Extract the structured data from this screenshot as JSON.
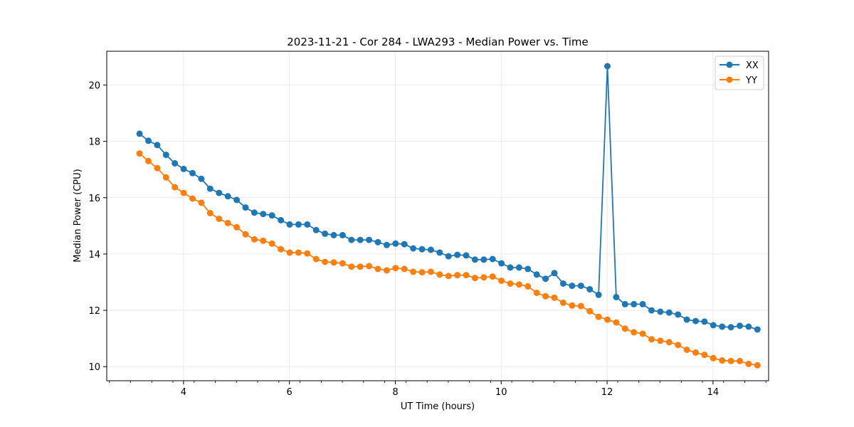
{
  "chart_data": {
    "type": "line",
    "title": "2023-11-21 - Cor 284 - LWA293 - Median Power vs. Time",
    "xlabel": "UT Time (hours)",
    "ylabel": "Median Power (CPU)",
    "xlim": [
      2.55,
      15.05
    ],
    "ylim": [
      9.5,
      21.2
    ],
    "xticks": [
      4,
      6,
      8,
      10,
      12,
      14
    ],
    "yticks": [
      10,
      12,
      14,
      16,
      18,
      20
    ],
    "xtick_labels": [
      "4",
      "6",
      "8",
      "10",
      "12",
      "14"
    ],
    "ytick_labels": [
      "10",
      "12",
      "14",
      "16",
      "18",
      "20"
    ],
    "grid": true,
    "legend_position": "top-right",
    "x_start": 3.17,
    "x_step": 0.1667,
    "series": [
      {
        "name": "XX",
        "color": "#1f77b4",
        "values": [
          18.27,
          18.02,
          17.87,
          17.52,
          17.22,
          17.02,
          16.87,
          16.67,
          16.32,
          16.17,
          16.05,
          15.92,
          15.65,
          15.47,
          15.42,
          15.37,
          15.2,
          15.05,
          15.05,
          15.05,
          14.85,
          14.72,
          14.67,
          14.67,
          14.5,
          14.5,
          14.5,
          14.42,
          14.32,
          14.37,
          14.35,
          14.2,
          14.17,
          14.15,
          14.05,
          13.92,
          13.97,
          13.95,
          13.8,
          13.8,
          13.82,
          13.67,
          13.52,
          13.52,
          13.47,
          13.27,
          13.12,
          13.32,
          12.95,
          12.87,
          12.87,
          12.75,
          12.55,
          20.67,
          12.47,
          12.22,
          12.22,
          12.22,
          12.0,
          11.95,
          11.92,
          11.85,
          11.67,
          11.62,
          11.6,
          11.47,
          11.42,
          11.4,
          11.45,
          11.42,
          11.32
        ]
      },
      {
        "name": "YY",
        "color": "#ff7f0e",
        "values": [
          17.57,
          17.3,
          17.05,
          16.72,
          16.37,
          16.17,
          15.97,
          15.82,
          15.45,
          15.25,
          15.1,
          14.95,
          14.7,
          14.52,
          14.47,
          14.37,
          14.17,
          14.05,
          14.05,
          14.02,
          13.82,
          13.72,
          13.7,
          13.67,
          13.55,
          13.55,
          13.57,
          13.47,
          13.42,
          13.5,
          13.47,
          13.37,
          13.35,
          13.37,
          13.27,
          13.22,
          13.25,
          13.25,
          13.15,
          13.17,
          13.2,
          13.05,
          12.95,
          12.92,
          12.85,
          12.62,
          12.5,
          12.45,
          12.27,
          12.17,
          12.15,
          11.97,
          11.77,
          11.67,
          11.57,
          11.35,
          11.22,
          11.17,
          10.97,
          10.92,
          10.87,
          10.77,
          10.6,
          10.5,
          10.42,
          10.3,
          10.22,
          10.2,
          10.2,
          10.1,
          10.05
        ]
      }
    ]
  }
}
